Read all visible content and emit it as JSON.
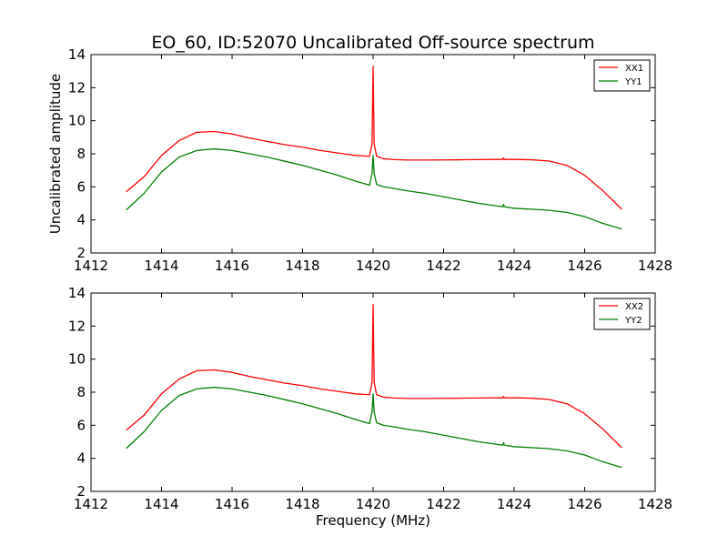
{
  "figure": {
    "title": "EO_60, ID:52070 Uncalibrated Off-source spectrum"
  },
  "chart_data": [
    {
      "type": "line",
      "ylabel": "Uncalibrated amplitude",
      "xlabel": "",
      "xlim": [
        1412,
        1428
      ],
      "ylim": [
        2,
        14
      ],
      "xticks": [
        1412,
        1414,
        1416,
        1418,
        1420,
        1422,
        1424,
        1426,
        1428
      ],
      "yticks": [
        2,
        4,
        6,
        8,
        10,
        12,
        14
      ],
      "legend_position": "top-right",
      "series": [
        {
          "name": "XX1",
          "color": "#ff0000",
          "x": [
            1413.0,
            1413.5,
            1414.0,
            1414.5,
            1415.0,
            1415.5,
            1416.0,
            1416.5,
            1417.0,
            1417.5,
            1418.0,
            1418.5,
            1419.0,
            1419.5,
            1419.9,
            1419.97,
            1420.0,
            1420.03,
            1420.1,
            1420.3,
            1420.6,
            1421.0,
            1421.5,
            1422.0,
            1422.5,
            1423.0,
            1423.5,
            1423.68,
            1423.7,
            1423.72,
            1424.0,
            1424.5,
            1425.0,
            1425.5,
            1426.0,
            1426.5,
            1427.05
          ],
          "y": [
            5.7,
            6.6,
            7.9,
            8.8,
            9.3,
            9.35,
            9.2,
            8.95,
            8.75,
            8.55,
            8.4,
            8.2,
            8.05,
            7.9,
            7.85,
            8.6,
            13.3,
            8.6,
            7.85,
            7.7,
            7.65,
            7.62,
            7.62,
            7.63,
            7.64,
            7.65,
            7.66,
            7.66,
            7.75,
            7.66,
            7.66,
            7.64,
            7.56,
            7.3,
            6.7,
            5.8,
            4.65
          ]
        },
        {
          "name": "YY1",
          "color": "#008000",
          "x": [
            1413.0,
            1413.5,
            1414.0,
            1414.5,
            1415.0,
            1415.5,
            1416.0,
            1416.5,
            1417.0,
            1417.5,
            1418.0,
            1418.5,
            1419.0,
            1419.5,
            1419.9,
            1419.97,
            1420.0,
            1420.03,
            1420.1,
            1420.3,
            1420.6,
            1421.0,
            1421.5,
            1422.0,
            1422.5,
            1423.0,
            1423.5,
            1423.68,
            1423.7,
            1423.72,
            1424.0,
            1424.5,
            1425.0,
            1425.5,
            1426.0,
            1426.5,
            1427.05
          ],
          "y": [
            4.6,
            5.6,
            6.9,
            7.8,
            8.2,
            8.3,
            8.2,
            8.0,
            7.8,
            7.55,
            7.3,
            7.0,
            6.7,
            6.35,
            6.1,
            6.8,
            7.9,
            6.8,
            6.15,
            6.0,
            5.9,
            5.75,
            5.6,
            5.4,
            5.2,
            5.0,
            4.85,
            4.8,
            4.95,
            4.8,
            4.7,
            4.65,
            4.58,
            4.45,
            4.2,
            3.8,
            3.45
          ]
        }
      ]
    },
    {
      "type": "line",
      "ylabel": "",
      "xlabel": "Frequency (MHz)",
      "xlim": [
        1412,
        1428
      ],
      "ylim": [
        2,
        14
      ],
      "xticks": [
        1412,
        1414,
        1416,
        1418,
        1420,
        1422,
        1424,
        1426,
        1428
      ],
      "yticks": [
        2,
        4,
        6,
        8,
        10,
        12,
        14
      ],
      "legend_position": "top-right",
      "series": [
        {
          "name": "XX2",
          "color": "#ff0000",
          "x": [
            1413.0,
            1413.5,
            1414.0,
            1414.5,
            1415.0,
            1415.5,
            1416.0,
            1416.5,
            1417.0,
            1417.5,
            1418.0,
            1418.5,
            1419.0,
            1419.5,
            1419.9,
            1419.97,
            1420.0,
            1420.03,
            1420.1,
            1420.3,
            1420.6,
            1421.0,
            1421.5,
            1422.0,
            1422.5,
            1423.0,
            1423.5,
            1423.68,
            1423.7,
            1423.72,
            1424.0,
            1424.5,
            1425.0,
            1425.5,
            1426.0,
            1426.5,
            1427.05
          ],
          "y": [
            5.7,
            6.6,
            7.9,
            8.8,
            9.3,
            9.35,
            9.2,
            8.95,
            8.75,
            8.55,
            8.4,
            8.2,
            8.05,
            7.9,
            7.85,
            8.6,
            13.3,
            8.6,
            7.85,
            7.7,
            7.65,
            7.62,
            7.62,
            7.63,
            7.64,
            7.65,
            7.66,
            7.66,
            7.75,
            7.66,
            7.66,
            7.64,
            7.56,
            7.3,
            6.7,
            5.8,
            4.65
          ]
        },
        {
          "name": "YY2",
          "color": "#008000",
          "x": [
            1413.0,
            1413.5,
            1414.0,
            1414.5,
            1415.0,
            1415.5,
            1416.0,
            1416.5,
            1417.0,
            1417.5,
            1418.0,
            1418.5,
            1419.0,
            1419.5,
            1419.9,
            1419.97,
            1420.0,
            1420.03,
            1420.1,
            1420.3,
            1420.6,
            1421.0,
            1421.5,
            1422.0,
            1422.5,
            1423.0,
            1423.5,
            1423.68,
            1423.7,
            1423.72,
            1424.0,
            1424.5,
            1425.0,
            1425.5,
            1426.0,
            1426.5,
            1427.05
          ],
          "y": [
            4.6,
            5.6,
            6.9,
            7.8,
            8.2,
            8.3,
            8.2,
            8.0,
            7.8,
            7.55,
            7.3,
            7.0,
            6.7,
            6.35,
            6.1,
            6.8,
            7.9,
            6.8,
            6.15,
            6.0,
            5.9,
            5.75,
            5.6,
            5.4,
            5.2,
            5.0,
            4.85,
            4.8,
            4.95,
            4.8,
            4.7,
            4.65,
            4.58,
            4.45,
            4.2,
            3.8,
            3.45
          ]
        }
      ]
    }
  ]
}
